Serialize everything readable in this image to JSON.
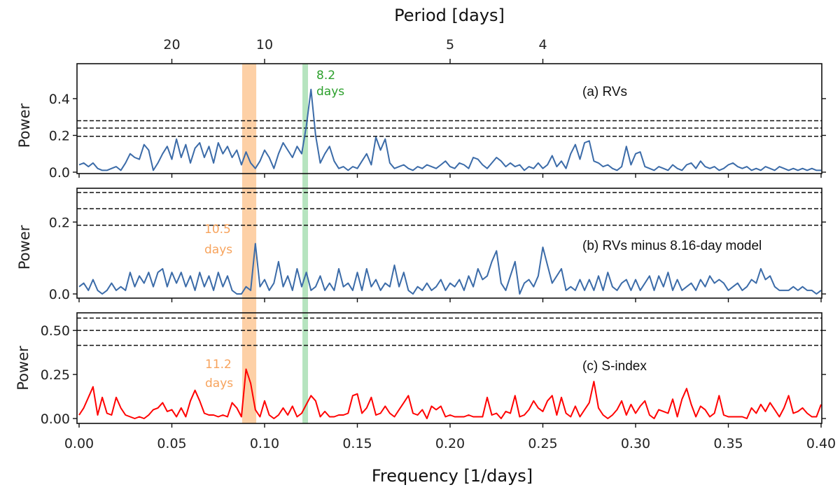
{
  "chart_data": {
    "type": "line",
    "x_label": "Frequency [1/days]",
    "top_axis_label": "Period [days]",
    "x_range": [
      0.0,
      0.4
    ],
    "x_ticks": [
      "0.00",
      "0.05",
      "0.10",
      "0.15",
      "0.20",
      "0.25",
      "0.30",
      "0.35",
      "0.40"
    ],
    "top_ticks": [
      {
        "label": "20",
        "freq": 0.05
      },
      {
        "label": "10",
        "freq": 0.1
      },
      {
        "label": "5",
        "freq": 0.2
      },
      {
        "label": "4",
        "freq": 0.25
      }
    ],
    "x_step": 0.0025,
    "bands": [
      {
        "name": "orange-band",
        "from": 0.0879,
        "to": 0.0955,
        "color": "#fdc897"
      },
      {
        "name": "green-band",
        "from": 0.1204,
        "to": 0.1234,
        "color": "#a9dfb4"
      }
    ],
    "panels": [
      {
        "id": "a",
        "title": "(a) RVs",
        "ylabel": "Power",
        "ylim": [
          0,
          0.59
        ],
        "y_ticks": [
          "0.0",
          "0.2",
          "0.4"
        ],
        "y_tick_values": [
          0,
          0.2,
          0.4
        ],
        "fap_levels": [
          0.195,
          0.24,
          0.28
        ],
        "color": "#3b6ba8",
        "annotation": {
          "lines": [
            "8.2",
            "days"
          ],
          "color": "#2ca02c"
        },
        "values": [
          0.04,
          0.05,
          0.03,
          0.05,
          0.02,
          0.01,
          0.01,
          0.02,
          0.03,
          0.01,
          0.05,
          0.1,
          0.08,
          0.07,
          0.15,
          0.12,
          0.01,
          0.05,
          0.1,
          0.14,
          0.07,
          0.18,
          0.08,
          0.15,
          0.05,
          0.13,
          0.16,
          0.08,
          0.14,
          0.05,
          0.16,
          0.1,
          0.14,
          0.08,
          0.12,
          0.04,
          0.11,
          0.05,
          0.02,
          0.06,
          0.12,
          0.08,
          0.02,
          0.1,
          0.16,
          0.12,
          0.08,
          0.14,
          0.1,
          0.25,
          0.45,
          0.2,
          0.05,
          0.1,
          0.14,
          0.06,
          0.02,
          0.03,
          0.01,
          0.03,
          0.02,
          0.06,
          0.1,
          0.04,
          0.19,
          0.12,
          0.18,
          0.05,
          0.02,
          0.03,
          0.04,
          0.02,
          0.01,
          0.03,
          0.02,
          0.04,
          0.03,
          0.02,
          0.04,
          0.06,
          0.03,
          0.02,
          0.05,
          0.04,
          0.02,
          0.08,
          0.07,
          0.04,
          0.02,
          0.05,
          0.08,
          0.06,
          0.03,
          0.05,
          0.03,
          0.04,
          0.01,
          0.03,
          0.02,
          0.05,
          0.02,
          0.04,
          0.09,
          0.03,
          0.06,
          0.02,
          0.1,
          0.15,
          0.07,
          0.16,
          0.17,
          0.06,
          0.05,
          0.03,
          0.04,
          0.02,
          0.01,
          0.03,
          0.14,
          0.04,
          0.1,
          0.11,
          0.03,
          0.02,
          0.01,
          0.03,
          0.02,
          0.01,
          0.04,
          0.02,
          0.01,
          0.04,
          0.05,
          0.02,
          0.06,
          0.03,
          0.02,
          0.03,
          0.01,
          0.02,
          0.04,
          0.05,
          0.03,
          0.02,
          0.03,
          0.01,
          0.02,
          0.01,
          0.03,
          0.02,
          0.01,
          0.03,
          0.02,
          0.01,
          0.02,
          0.01,
          0.02,
          0.01,
          0.02,
          0.01,
          0.01
        ]
      },
      {
        "id": "b",
        "title": "(b) RVs minus 8.16-day model",
        "ylabel": "Power",
        "ylim": [
          0,
          0.294
        ],
        "y_ticks": [
          "0.0",
          "0.2"
        ],
        "y_tick_values": [
          0,
          0.2
        ],
        "fap_levels": [
          0.191,
          0.237,
          0.282
        ],
        "color": "#3b6ba8",
        "annotation": {
          "lines": [
            "10.5",
            "days"
          ],
          "color": "#f7a35c"
        },
        "values": [
          0.02,
          0.03,
          0.01,
          0.04,
          0.01,
          0.0,
          0.01,
          0.03,
          0.01,
          0.02,
          0.01,
          0.06,
          0.02,
          0.05,
          0.03,
          0.06,
          0.02,
          0.06,
          0.07,
          0.02,
          0.06,
          0.03,
          0.06,
          0.02,
          0.05,
          0.01,
          0.06,
          0.02,
          0.05,
          0.01,
          0.06,
          0.02,
          0.05,
          0.01,
          0.0,
          0.0,
          0.02,
          0.01,
          0.14,
          0.02,
          0.04,
          0.01,
          0.03,
          0.09,
          0.02,
          0.05,
          0.01,
          0.07,
          0.02,
          0.06,
          0.01,
          0.02,
          0.05,
          0.01,
          0.03,
          0.01,
          0.07,
          0.02,
          0.03,
          0.01,
          0.06,
          0.01,
          0.07,
          0.02,
          0.04,
          0.01,
          0.03,
          0.02,
          0.08,
          0.02,
          0.06,
          0.01,
          0.0,
          0.02,
          0.01,
          0.03,
          0.01,
          0.02,
          0.04,
          0.01,
          0.03,
          0.02,
          0.04,
          0.01,
          0.05,
          0.02,
          0.07,
          0.04,
          0.05,
          0.09,
          0.12,
          0.03,
          0.01,
          0.05,
          0.09,
          0.0,
          0.03,
          0.04,
          0.02,
          0.05,
          0.13,
          0.08,
          0.03,
          0.05,
          0.07,
          0.01,
          0.02,
          0.01,
          0.04,
          0.01,
          0.04,
          0.01,
          0.05,
          0.01,
          0.06,
          0.02,
          0.01,
          0.03,
          0.04,
          0.01,
          0.04,
          0.01,
          0.03,
          0.05,
          0.01,
          0.05,
          0.02,
          0.06,
          0.01,
          0.04,
          0.01,
          0.02,
          0.03,
          0.01,
          0.04,
          0.02,
          0.05,
          0.03,
          0.04,
          0.03,
          0.01,
          0.02,
          0.03,
          0.01,
          0.02,
          0.04,
          0.03,
          0.07,
          0.04,
          0.05,
          0.02,
          0.01,
          0.01,
          0.01,
          0.02,
          0.01,
          0.02,
          0.01,
          0.01,
          0.0,
          0.01
        ]
      },
      {
        "id": "c",
        "title": "(c) S-index",
        "ylabel": "Power",
        "ylim": [
          0,
          0.6
        ],
        "y_ticks": [
          "0.00",
          "0.25",
          "0.50"
        ],
        "y_tick_values": [
          0,
          0.25,
          0.5
        ],
        "fap_levels": [
          0.415,
          0.5,
          0.57
        ],
        "color": "#ff0000",
        "annotation": {
          "lines": [
            "11.2",
            "days"
          ],
          "color": "#f7a35c"
        },
        "values": [
          0.02,
          0.06,
          0.12,
          0.18,
          0.02,
          0.12,
          0.03,
          0.02,
          0.12,
          0.06,
          0.02,
          0.01,
          0.0,
          0.01,
          0.0,
          0.02,
          0.05,
          0.06,
          0.09,
          0.04,
          0.05,
          0.01,
          0.06,
          0.01,
          0.1,
          0.16,
          0.1,
          0.03,
          0.02,
          0.02,
          0.01,
          0.02,
          0.01,
          0.09,
          0.06,
          0.01,
          0.28,
          0.2,
          0.05,
          0.01,
          0.1,
          0.02,
          0.0,
          0.02,
          0.06,
          0.02,
          0.07,
          0.01,
          0.03,
          0.08,
          0.13,
          0.1,
          0.01,
          0.04,
          0.01,
          0.01,
          0.02,
          0.02,
          0.03,
          0.13,
          0.14,
          0.03,
          0.06,
          0.12,
          0.02,
          0.03,
          0.07,
          0.03,
          0.01,
          0.05,
          0.09,
          0.13,
          0.03,
          0.02,
          0.05,
          0.0,
          0.07,
          0.05,
          0.07,
          0.01,
          0.02,
          0.01,
          0.01,
          0.01,
          0.02,
          0.01,
          0.01,
          0.01,
          0.12,
          0.02,
          0.03,
          0.0,
          0.04,
          0.03,
          0.13,
          0.01,
          0.02,
          0.05,
          0.1,
          0.06,
          0.04,
          0.1,
          0.13,
          0.02,
          0.12,
          0.03,
          0.01,
          0.07,
          0.01,
          0.05,
          0.09,
          0.21,
          0.06,
          0.02,
          0.0,
          0.02,
          0.05,
          0.1,
          0.02,
          0.08,
          0.03,
          0.07,
          0.1,
          0.02,
          0.0,
          0.05,
          0.04,
          0.03,
          0.11,
          0.01,
          0.11,
          0.17,
          0.08,
          0.01,
          0.07,
          0.05,
          0.01,
          0.03,
          0.13,
          0.02,
          0.01,
          0.01,
          0.01,
          0.01,
          0.0,
          0.06,
          0.03,
          0.08,
          0.04,
          0.09,
          0.05,
          0.01,
          0.06,
          0.13,
          0.03,
          0.04,
          0.06,
          0.03,
          0.01,
          0.01,
          0.08
        ]
      }
    ]
  }
}
